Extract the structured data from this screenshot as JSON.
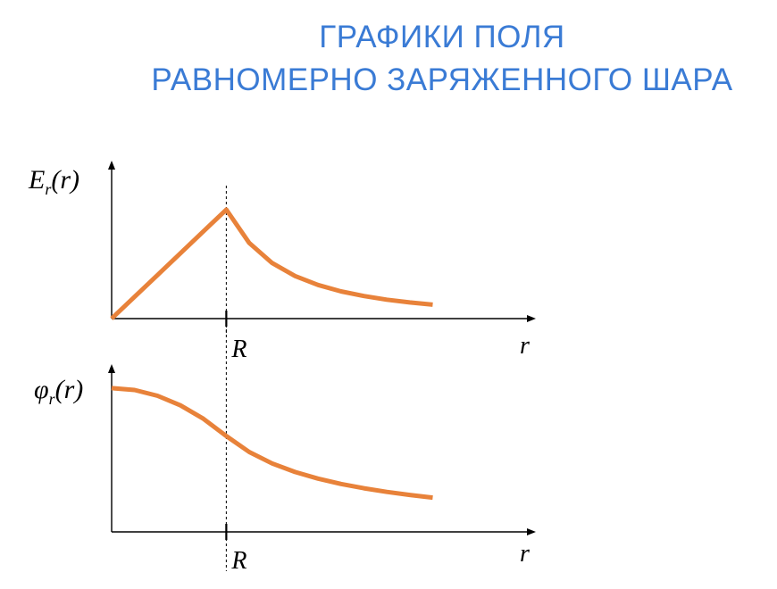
{
  "title": {
    "line1": "ГРАФИКИ ПОЛЯ",
    "line2": "РАВНОМЕРНО ЗАРЯЖЕННОГО ШАРА"
  },
  "colors": {
    "title": "#3a7bd5",
    "curve": "#e8823a",
    "axis": "#000000"
  },
  "chart_data": [
    {
      "type": "line",
      "ylabel": "E",
      "ylabel_sub": "r",
      "ylabel_arg": "(r)",
      "xlabel": "r",
      "marker_label": "R",
      "x": [
        0,
        0.2,
        0.4,
        0.6,
        0.8,
        1.0,
        1.2,
        1.4,
        1.6,
        1.8,
        2.0,
        2.2,
        2.4,
        2.6,
        2.8
      ],
      "values": [
        0,
        0.2,
        0.4,
        0.6,
        0.8,
        1.0,
        0.694,
        0.51,
        0.391,
        0.309,
        0.25,
        0.207,
        0.174,
        0.148,
        0.128
      ],
      "xlim": [
        0,
        3.7
      ],
      "ylim": [
        0,
        1.45
      ],
      "grid": false
    },
    {
      "type": "line",
      "ylabel": "φ",
      "ylabel_sub": "r",
      "ylabel_arg": "(r)",
      "xlabel": "r",
      "marker_label": "R",
      "x": [
        0,
        0.2,
        0.4,
        0.6,
        0.8,
        1.0,
        1.2,
        1.4,
        1.6,
        1.8,
        2.0,
        2.2,
        2.4,
        2.6,
        2.8
      ],
      "values": [
        1.5,
        1.48,
        1.42,
        1.32,
        1.18,
        1.0,
        0.833,
        0.714,
        0.625,
        0.556,
        0.5,
        0.455,
        0.417,
        0.385,
        0.357
      ],
      "xlim": [
        0,
        3.7
      ],
      "ylim": [
        0,
        1.75
      ],
      "grid": false
    }
  ]
}
